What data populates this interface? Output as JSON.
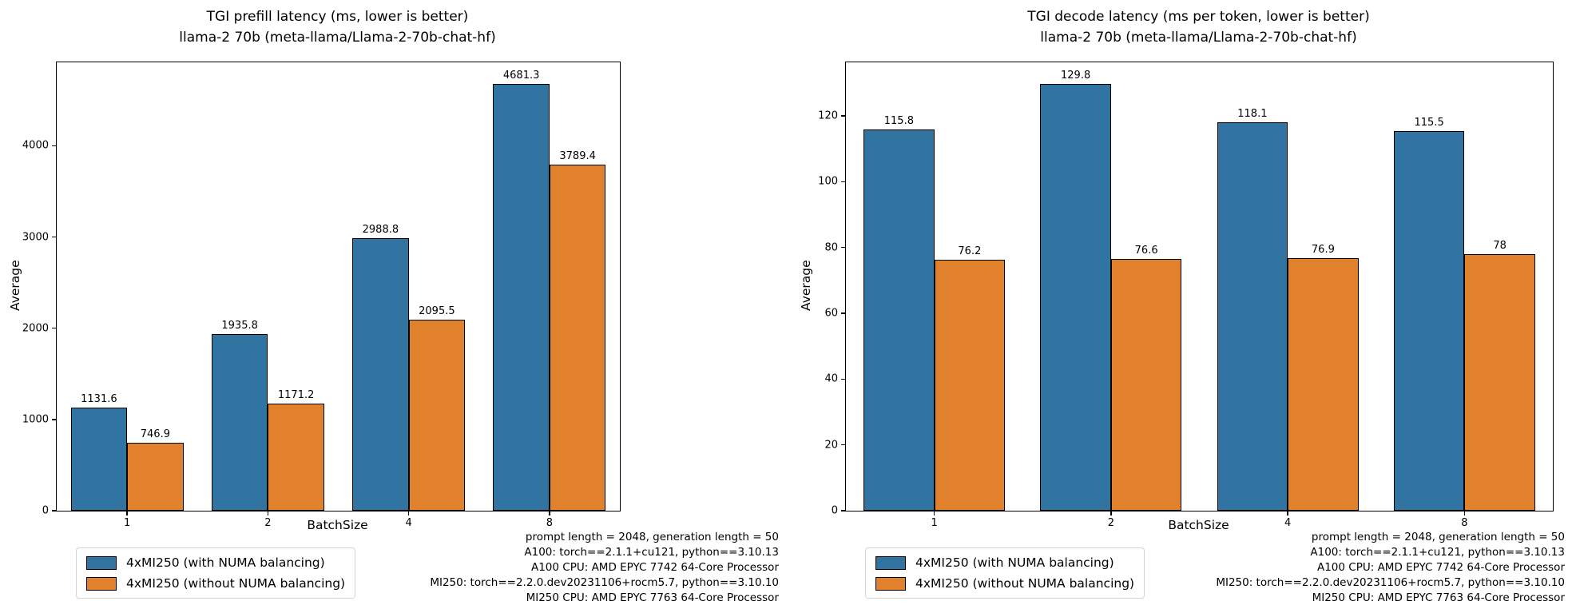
{
  "figure": {
    "background": "#ffffff",
    "bar_edge_color": "#000000",
    "text_color": "#000000"
  },
  "legend": {
    "items": [
      {
        "label": "4xMI250 (with NUMA balancing)",
        "color": "#3274a1"
      },
      {
        "label": "4xMI250 (without NUMA balancing)",
        "color": "#e1812c"
      }
    ]
  },
  "annotation_lines": [
    "prompt length = 2048, generation length = 50",
    "A100: torch==2.1.1+cu121, python==3.10.13",
    "A100 CPU: AMD EPYC 7742 64-Core Processor",
    "MI250: torch==2.2.0.dev20231106+rocm5.7, python==3.10.10",
    "MI250 CPU: AMD EPYC 7763 64-Core Processor"
  ],
  "chart_data": [
    {
      "type": "bar",
      "title": "TGI prefill latency (ms, lower is better)",
      "subtitle": "llama-2 70b (meta-llama/Llama-2-70b-chat-hf)",
      "xlabel": "BatchSize",
      "ylabel": "Average",
      "categories": [
        "1",
        "2",
        "4",
        "8"
      ],
      "series": [
        {
          "name": "4xMI250 (with NUMA balancing)",
          "color": "#3274a1",
          "values": [
            1131.6,
            1935.8,
            2988.8,
            4681.3
          ]
        },
        {
          "name": "4xMI250 (without NUMA balancing)",
          "color": "#e1812c",
          "values": [
            746.9,
            1171.2,
            2095.5,
            3789.4
          ]
        }
      ],
      "yticks": [
        0,
        1000,
        2000,
        3000,
        4000
      ],
      "ylim": [
        0,
        4915
      ],
      "grid": false,
      "legend_position": "below-left"
    },
    {
      "type": "bar",
      "title": "TGI decode latency (ms per token, lower is better)",
      "subtitle": "llama-2 70b (meta-llama/Llama-2-70b-chat-hf)",
      "xlabel": "BatchSize",
      "ylabel": "Average",
      "categories": [
        "1",
        "2",
        "4",
        "8"
      ],
      "series": [
        {
          "name": "4xMI250 (with NUMA balancing)",
          "color": "#3274a1",
          "values": [
            115.8,
            129.8,
            118.1,
            115.5
          ]
        },
        {
          "name": "4xMI250 (without NUMA balancing)",
          "color": "#e1812c",
          "values": [
            76.2,
            76.6,
            76.9,
            78
          ]
        }
      ],
      "yticks": [
        0,
        20,
        40,
        60,
        80,
        100,
        120
      ],
      "ylim": [
        0,
        136.3
      ],
      "grid": false,
      "legend_position": "below-left"
    }
  ]
}
